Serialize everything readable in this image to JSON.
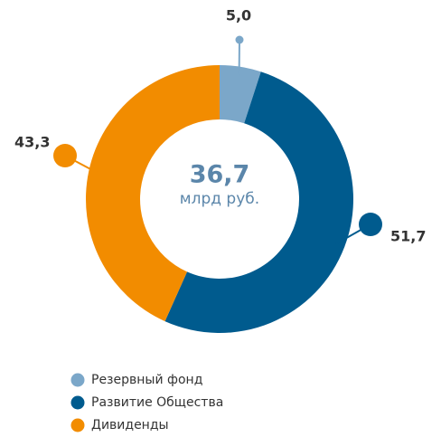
{
  "chart_data": {
    "type": "donut",
    "categories": [
      "Резервный фонд",
      "Развитие Общества",
      "Дивиденды"
    ],
    "values": [
      5.0,
      51.7,
      43.3
    ],
    "value_labels": [
      "5,0",
      "51,7",
      "43,3"
    ],
    "colors": [
      "#7ba7c9",
      "#005b8e",
      "#f28c00"
    ],
    "center_value": "36,7",
    "center_unit": "млрд руб.",
    "legend": "bottom-left"
  }
}
